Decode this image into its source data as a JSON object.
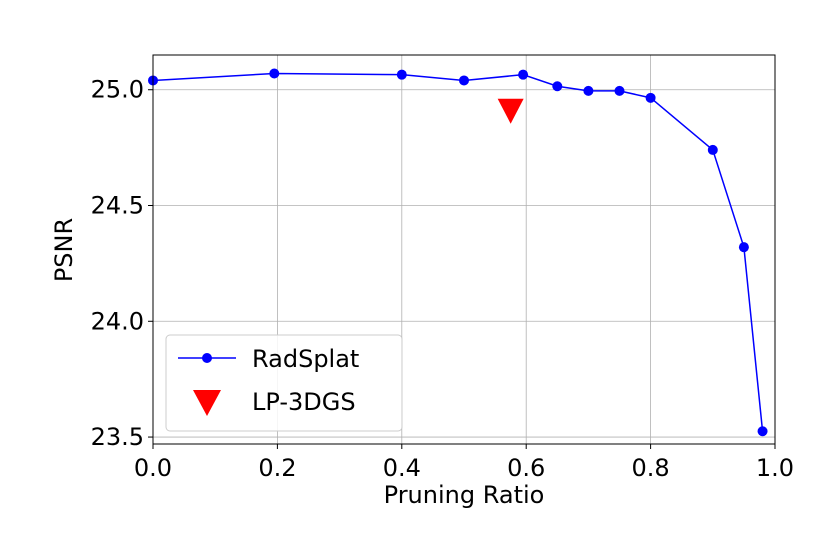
{
  "chart_data": {
    "type": "line",
    "title": "",
    "xlabel": "Pruning Ratio",
    "ylabel": "PSNR",
    "xlim": [
      0.0,
      1.0
    ],
    "ylim": [
      23.47,
      25.15
    ],
    "xticks": [
      "0.0",
      "0.2",
      "0.4",
      "0.6",
      "0.8",
      "1.0"
    ],
    "xtick_values": [
      0.0,
      0.2,
      0.4,
      0.6,
      0.8,
      1.0
    ],
    "yticks": [
      "23.5",
      "24.0",
      "24.5",
      "25.0"
    ],
    "ytick_values": [
      23.5,
      24.0,
      24.5,
      25.0
    ],
    "grid": true,
    "legend_position": "lower-left",
    "series": [
      {
        "name": "RadSplat",
        "color": "#0000ff",
        "marker": "circle",
        "x": [
          0.0,
          0.195,
          0.4,
          0.5,
          0.595,
          0.65,
          0.7,
          0.75,
          0.8,
          0.9,
          0.95,
          0.98
        ],
        "y": [
          25.04,
          25.07,
          25.065,
          25.04,
          25.065,
          25.015,
          24.995,
          24.995,
          24.965,
          24.74,
          24.32,
          23.525
        ]
      },
      {
        "name": "LP-3DGS",
        "color": "#ff0000",
        "marker": "triangle-down",
        "x": [
          0.575
        ],
        "y": [
          24.905
        ]
      }
    ]
  }
}
